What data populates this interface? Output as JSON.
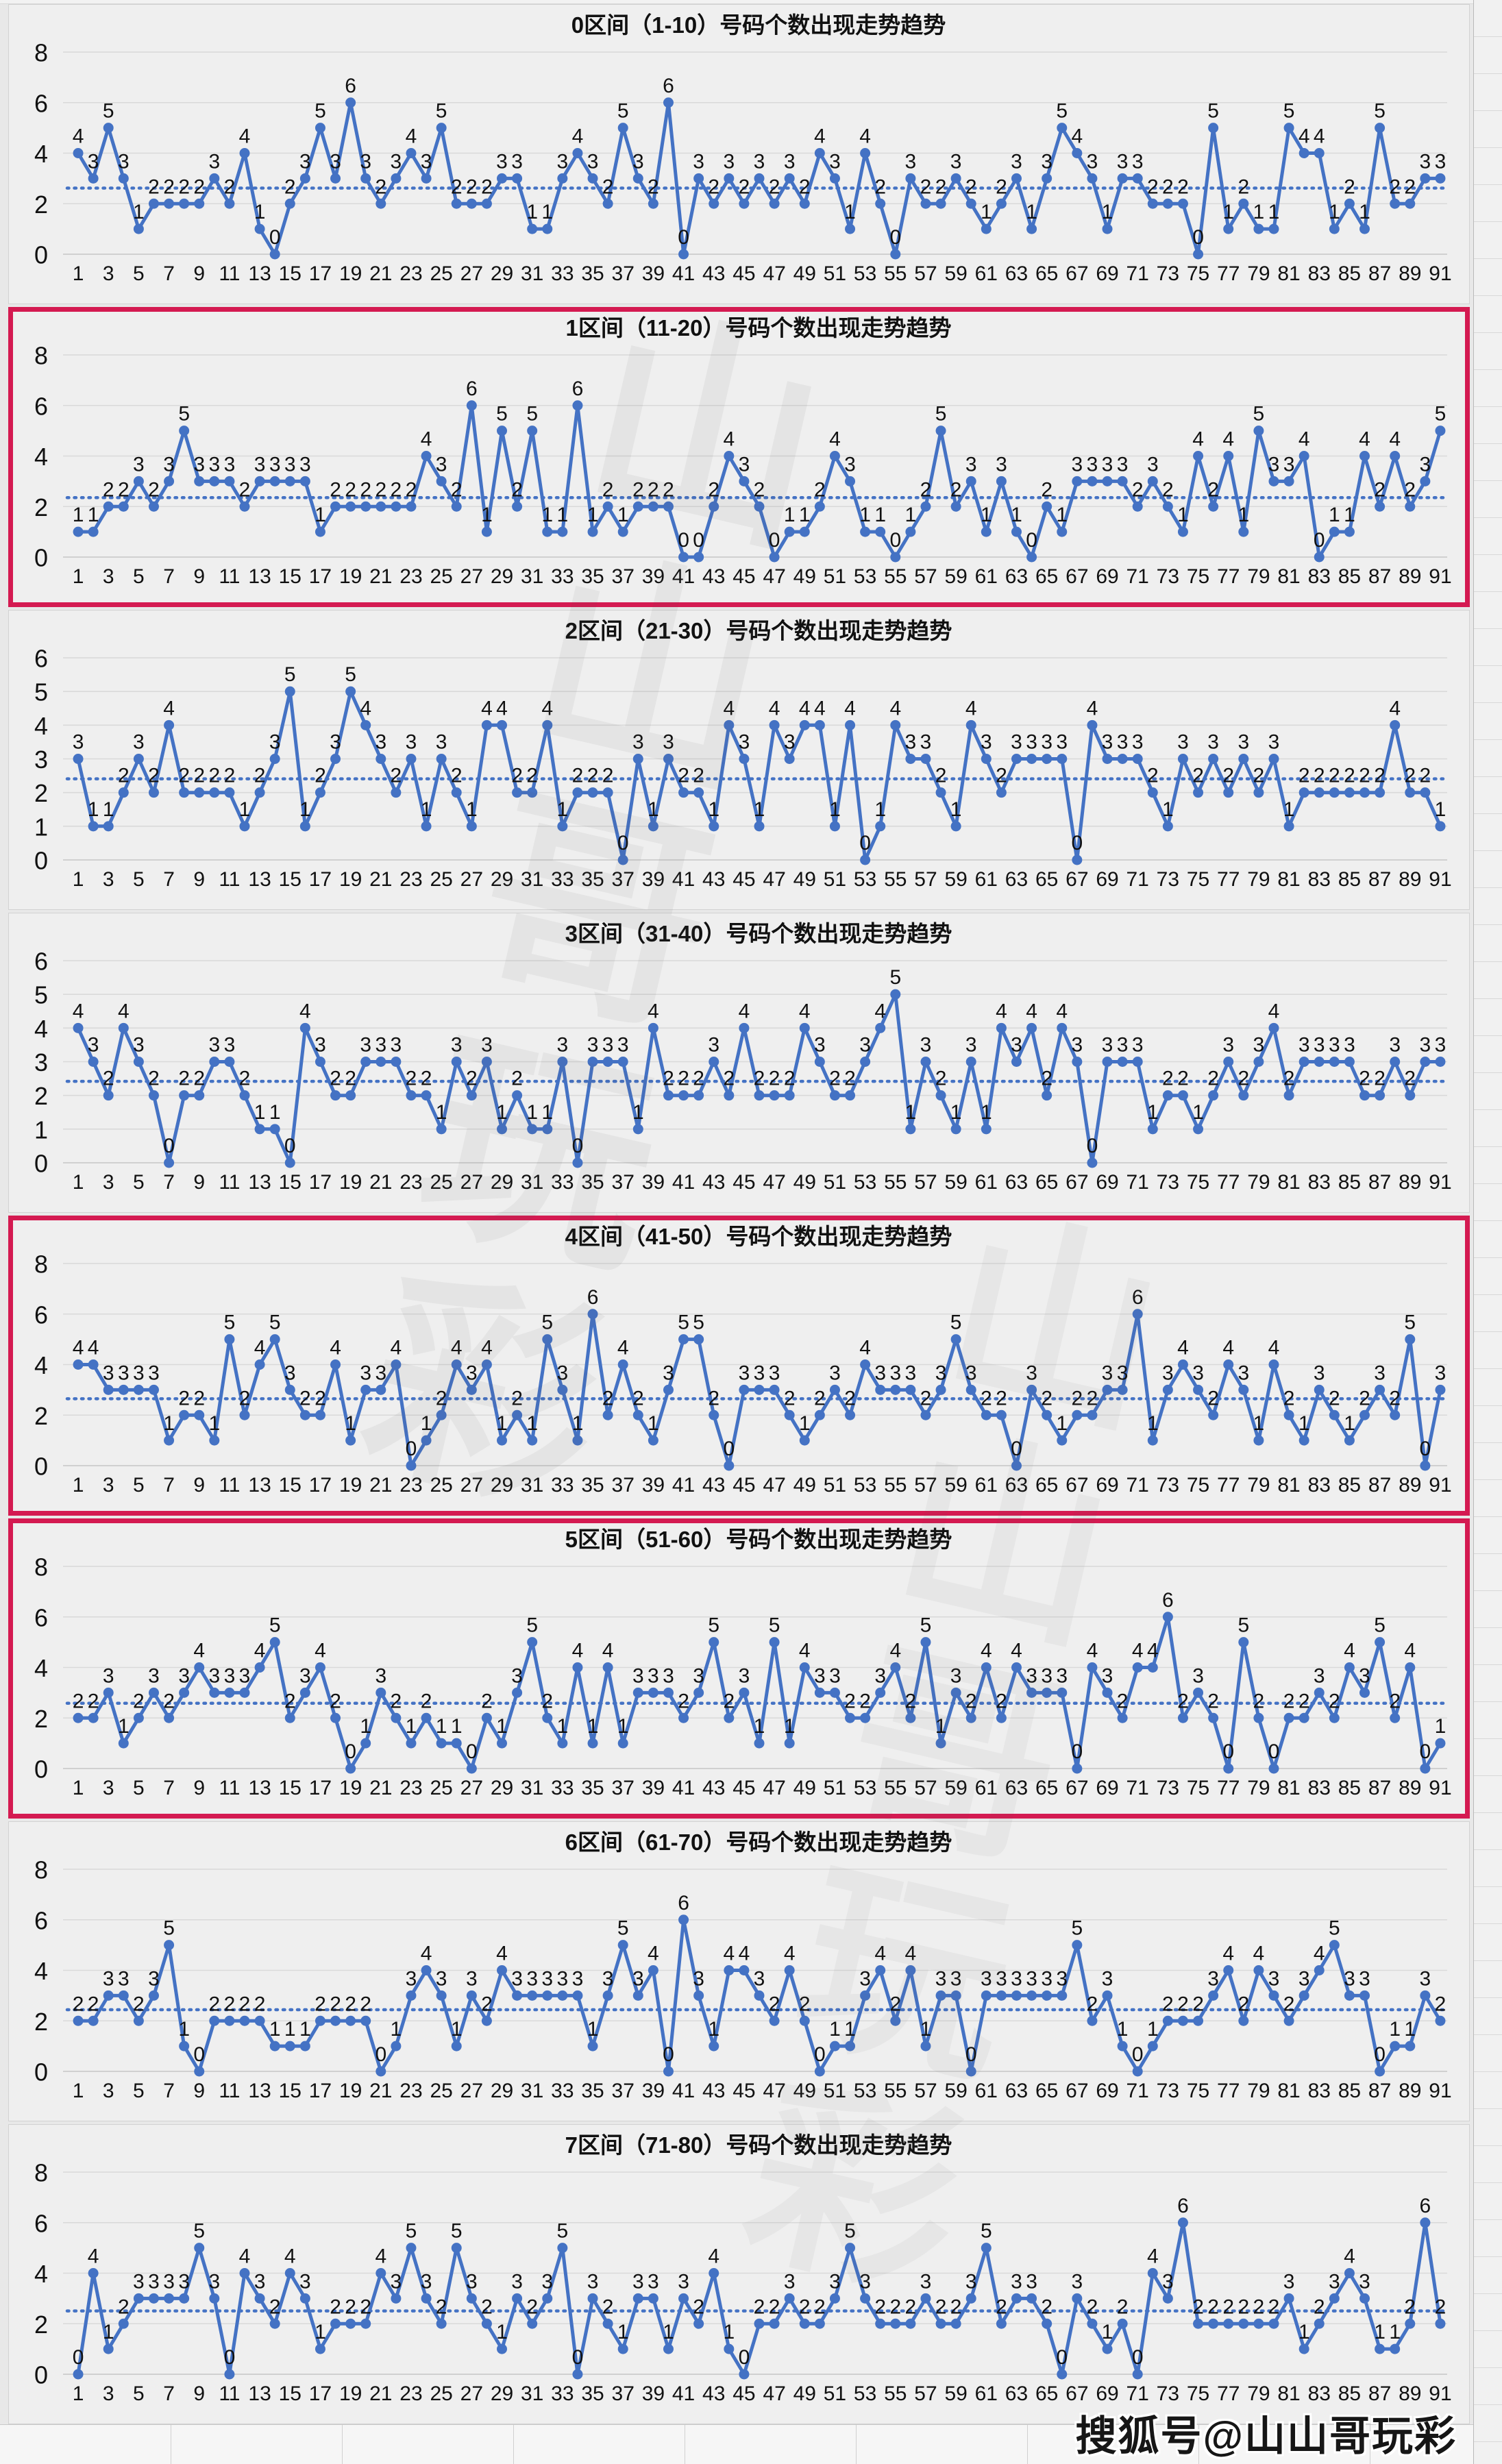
{
  "page": {
    "watermark_diagonal": "山山哥玩彩",
    "watermark_bottom": "搜狐号@山山哥玩彩",
    "colors": {
      "line": "#4472c4",
      "marker": "#4472c4",
      "mean_line": "#4472c4",
      "red_border": "#d41a51",
      "grid": "#d9d9d9",
      "zero_grid": "#c6c6c6",
      "chart_bg": "#efefef",
      "page_bg": "#e8e8e8",
      "label": "#111111"
    }
  },
  "chart_data": [
    {
      "type": "line",
      "title": "0区间（1-10）号码个数出现走势趋势",
      "border": "gray",
      "x_range": [
        1,
        91
      ],
      "xtick_step": 2,
      "ylim": [
        0,
        8
      ],
      "yticks": [
        0,
        2,
        4,
        6,
        8
      ],
      "grid": true,
      "legend": "none",
      "mean_line": "dotted",
      "values": [
        4,
        3,
        5,
        3,
        1,
        2,
        2,
        2,
        2,
        3,
        2,
        4,
        1,
        0,
        2,
        3,
        5,
        3,
        6,
        3,
        2,
        3,
        4,
        3,
        5,
        2,
        2,
        2,
        3,
        3,
        1,
        1,
        3,
        4,
        3,
        2,
        5,
        3,
        2,
        6,
        0,
        3,
        2,
        3,
        2,
        3,
        2,
        3,
        2,
        4,
        3,
        1,
        4,
        2,
        0,
        3,
        2,
        2,
        3,
        2,
        1,
        2,
        3,
        1,
        3,
        5,
        4,
        3,
        1,
        3,
        3,
        2,
        2,
        2,
        0,
        5,
        1,
        2,
        1,
        1,
        5,
        4,
        4,
        1,
        2,
        1,
        5,
        2,
        2,
        3,
        3
      ]
    },
    {
      "type": "line",
      "title": "1区间（11-20）号码个数出现走势趋势",
      "border": "red",
      "x_range": [
        1,
        91
      ],
      "xtick_step": 2,
      "ylim": [
        0,
        8
      ],
      "yticks": [
        0,
        2,
        4,
        6,
        8
      ],
      "grid": true,
      "legend": "none",
      "mean_line": "dotted",
      "values": [
        1,
        1,
        2,
        2,
        3,
        2,
        3,
        5,
        3,
        3,
        3,
        2,
        3,
        3,
        3,
        3,
        1,
        2,
        2,
        2,
        2,
        2,
        2,
        4,
        3,
        2,
        6,
        1,
        5,
        2,
        5,
        1,
        1,
        6,
        1,
        2,
        1,
        2,
        2,
        2,
        0,
        0,
        2,
        4,
        3,
        2,
        0,
        1,
        1,
        2,
        4,
        3,
        1,
        1,
        0,
        1,
        2,
        5,
        2,
        3,
        1,
        3,
        1,
        0,
        2,
        1,
        3,
        3,
        3,
        3,
        2,
        3,
        2,
        1,
        4,
        2,
        4,
        1,
        5,
        3,
        3,
        4,
        0,
        1,
        1,
        4,
        2,
        4,
        2,
        3,
        5
      ]
    },
    {
      "type": "line",
      "title": "2区间（21-30）号码个数出现走势趋势",
      "border": "gray",
      "x_range": [
        1,
        91
      ],
      "xtick_step": 2,
      "ylim": [
        0,
        6
      ],
      "yticks": [
        0,
        1,
        2,
        3,
        4,
        5,
        6
      ],
      "grid": true,
      "legend": "none",
      "mean_line": "dotted",
      "values": [
        3,
        1,
        1,
        2,
        3,
        2,
        4,
        2,
        2,
        2,
        2,
        1,
        2,
        3,
        5,
        1,
        2,
        3,
        5,
        4,
        3,
        2,
        3,
        1,
        3,
        2,
        1,
        4,
        4,
        2,
        2,
        4,
        1,
        2,
        2,
        2,
        0,
        3,
        1,
        3,
        2,
        2,
        1,
        4,
        3,
        1,
        4,
        3,
        4,
        4,
        1,
        4,
        0,
        1,
        4,
        3,
        3,
        2,
        1,
        4,
        3,
        2,
        3,
        3,
        3,
        3,
        0,
        4,
        3,
        3,
        3,
        2,
        1,
        3,
        2,
        3,
        2,
        3,
        2,
        3,
        1,
        2,
        2,
        2,
        2,
        2,
        2,
        4,
        2,
        2,
        1
      ]
    },
    {
      "type": "line",
      "title": "3区间（31-40）号码个数出现走势趋势",
      "border": "gray",
      "x_range": [
        1,
        91
      ],
      "xtick_step": 2,
      "ylim": [
        0,
        6
      ],
      "yticks": [
        0,
        1,
        2,
        3,
        4,
        5,
        6
      ],
      "grid": true,
      "legend": "none",
      "mean_line": "dotted",
      "values": [
        4,
        3,
        2,
        4,
        3,
        2,
        0,
        2,
        2,
        3,
        3,
        2,
        1,
        1,
        0,
        4,
        3,
        2,
        2,
        3,
        3,
        3,
        2,
        2,
        1,
        3,
        2,
        3,
        1,
        2,
        1,
        1,
        3,
        0,
        3,
        3,
        3,
        1,
        4,
        2,
        2,
        2,
        3,
        2,
        4,
        2,
        2,
        2,
        4,
        3,
        2,
        2,
        3,
        4,
        5,
        1,
        3,
        2,
        1,
        3,
        1,
        4,
        3,
        4,
        2,
        4,
        3,
        0,
        3,
        3,
        3,
        1,
        2,
        2,
        1,
        2,
        3,
        2,
        3,
        4,
        2,
        3,
        3,
        3,
        3,
        2,
        2,
        3,
        2,
        3,
        3
      ]
    },
    {
      "type": "line",
      "title": "4区间（41-50）号码个数出现走势趋势",
      "border": "red",
      "x_range": [
        1,
        91
      ],
      "xtick_step": 2,
      "ylim": [
        0,
        8
      ],
      "yticks": [
        0,
        2,
        4,
        6,
        8
      ],
      "grid": true,
      "legend": "none",
      "mean_line": "dotted",
      "values": [
        4,
        4,
        3,
        3,
        3,
        3,
        1,
        2,
        2,
        1,
        5,
        2,
        4,
        5,
        3,
        2,
        2,
        4,
        1,
        3,
        3,
        4,
        0,
        1,
        2,
        4,
        3,
        4,
        1,
        2,
        1,
        5,
        3,
        1,
        6,
        2,
        4,
        2,
        1,
        3,
        5,
        5,
        2,
        0,
        3,
        3,
        3,
        2,
        1,
        2,
        3,
        2,
        4,
        3,
        3,
        3,
        2,
        3,
        5,
        3,
        2,
        2,
        0,
        3,
        2,
        1,
        2,
        2,
        3,
        3,
        6,
        1,
        3,
        4,
        3,
        2,
        4,
        3,
        1,
        4,
        2,
        1,
        3,
        2,
        1,
        2,
        3,
        2,
        5,
        0,
        3
      ]
    },
    {
      "type": "line",
      "title": "5区间（51-60）号码个数出现走势趋势",
      "border": "red",
      "x_range": [
        1,
        91
      ],
      "xtick_step": 2,
      "ylim": [
        0,
        8
      ],
      "yticks": [
        0,
        2,
        4,
        6,
        8
      ],
      "grid": true,
      "legend": "none",
      "mean_line": "dotted",
      "values": [
        2,
        2,
        3,
        1,
        2,
        3,
        2,
        3,
        4,
        3,
        3,
        3,
        4,
        5,
        2,
        3,
        4,
        2,
        0,
        1,
        3,
        2,
        1,
        2,
        1,
        1,
        0,
        2,
        1,
        3,
        5,
        2,
        1,
        4,
        1,
        4,
        1,
        3,
        3,
        3,
        2,
        3,
        5,
        2,
        3,
        1,
        5,
        1,
        4,
        3,
        3,
        2,
        2,
        3,
        4,
        2,
        5,
        1,
        3,
        2,
        4,
        2,
        4,
        3,
        3,
        3,
        0,
        4,
        3,
        2,
        4,
        4,
        6,
        2,
        3,
        2,
        0,
        5,
        2,
        0,
        2,
        2,
        3,
        2,
        4,
        3,
        5,
        2,
        4,
        0,
        1
      ]
    },
    {
      "type": "line",
      "title": "6区间（61-70）号码个数出现走势趋势",
      "border": "gray",
      "x_range": [
        1,
        91
      ],
      "xtick_step": 2,
      "ylim": [
        0,
        8
      ],
      "yticks": [
        0,
        2,
        4,
        6,
        8
      ],
      "grid": true,
      "legend": "none",
      "mean_line": "dotted",
      "values": [
        2,
        2,
        3,
        3,
        2,
        3,
        5,
        1,
        0,
        2,
        2,
        2,
        2,
        1,
        1,
        1,
        2,
        2,
        2,
        2,
        0,
        1,
        3,
        4,
        3,
        1,
        3,
        2,
        4,
        3,
        3,
        3,
        3,
        3,
        1,
        3,
        5,
        3,
        4,
        0,
        6,
        3,
        1,
        4,
        4,
        3,
        2,
        4,
        2,
        0,
        1,
        1,
        3,
        4,
        2,
        4,
        1,
        3,
        3,
        0,
        3,
        3,
        3,
        3,
        3,
        3,
        5,
        2,
        3,
        1,
        0,
        1,
        2,
        2,
        2,
        3,
        4,
        2,
        4,
        3,
        2,
        3,
        4,
        5,
        3,
        3,
        0,
        1,
        1,
        3,
        2
      ]
    },
    {
      "type": "line",
      "title": "7区间（71-80）号码个数出现走势趋势",
      "border": "gray",
      "x_range": [
        1,
        91
      ],
      "xtick_step": 2,
      "ylim": [
        0,
        8
      ],
      "yticks": [
        0,
        2,
        4,
        6,
        8
      ],
      "grid": true,
      "legend": "none",
      "mean_line": "dotted",
      "values": [
        0,
        4,
        1,
        2,
        3,
        3,
        3,
        3,
        5,
        3,
        0,
        4,
        3,
        2,
        4,
        3,
        1,
        2,
        2,
        2,
        4,
        3,
        5,
        3,
        2,
        5,
        3,
        2,
        1,
        3,
        2,
        3,
        5,
        0,
        3,
        2,
        1,
        3,
        3,
        1,
        3,
        2,
        4,
        1,
        0,
        2,
        2,
        3,
        2,
        2,
        3,
        5,
        3,
        2,
        2,
        2,
        3,
        2,
        2,
        3,
        5,
        2,
        3,
        3,
        2,
        0,
        3,
        2,
        1,
        2,
        0,
        4,
        3,
        6,
        2,
        2,
        2,
        2,
        2,
        2,
        3,
        1,
        2,
        3,
        4,
        3,
        1,
        1,
        2,
        6,
        2
      ]
    }
  ]
}
